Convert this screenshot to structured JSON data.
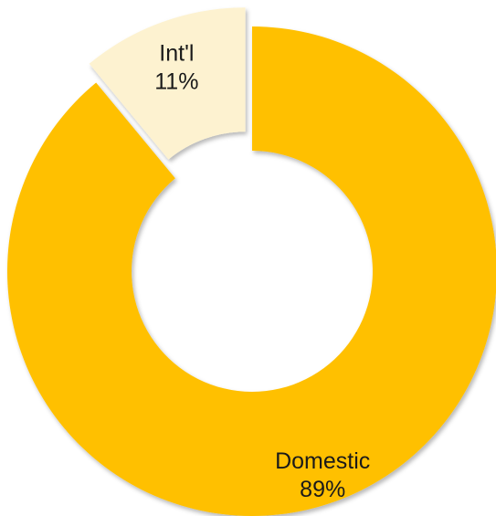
{
  "chart_data": {
    "type": "pie",
    "variant": "donut",
    "slices": [
      {
        "name": "Domestic",
        "value": 89,
        "label": "89%",
        "color": "#FFC000",
        "exploded": false
      },
      {
        "name": "Int'l",
        "value": 11,
        "label": "11%",
        "color": "#FDF2D0",
        "exploded": true
      }
    ],
    "title": "",
    "legend": "none"
  }
}
